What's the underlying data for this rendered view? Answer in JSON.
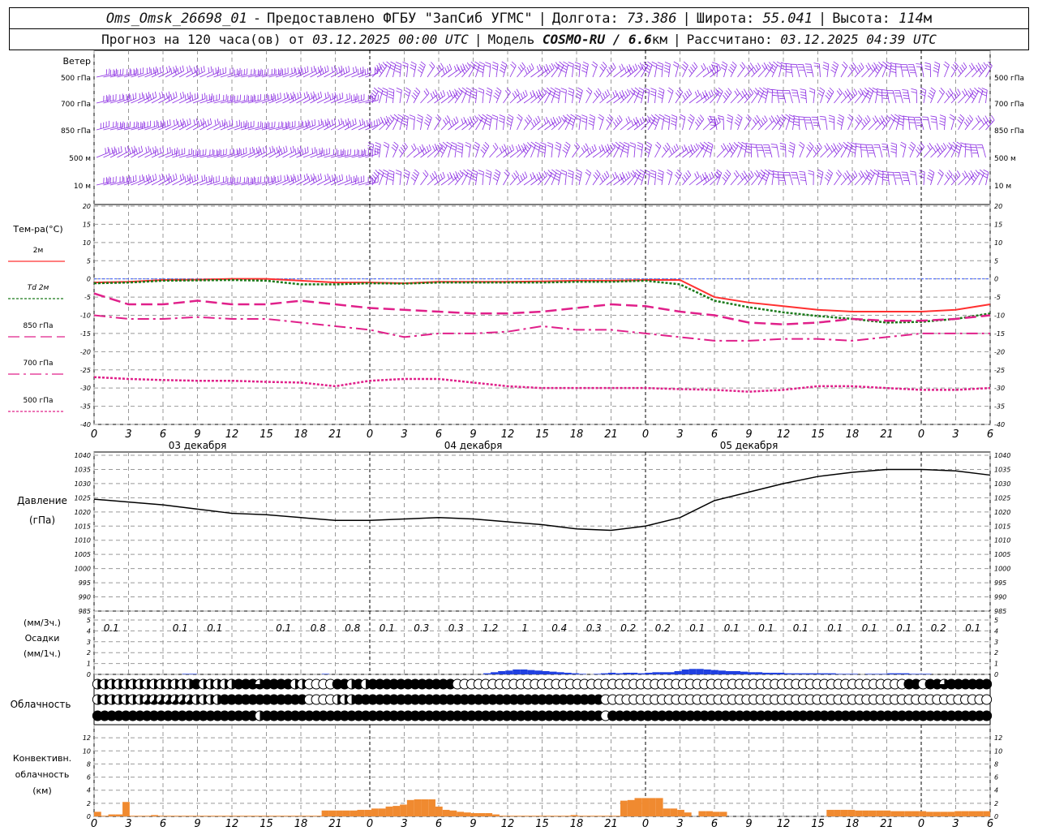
{
  "header": {
    "station": "Oms_Omsk_26698_01",
    "provided_label": "Предоставлено ФГБУ \"ЗапСиб УГМС\"",
    "lon_label": "Долгота:",
    "lon": "73.386",
    "lat_label": "Широта:",
    "lat": "55.041",
    "alt_label": "Высота:",
    "alt": "114",
    "alt_unit": "м",
    "forecast_prefix": "Прогноз на 120 часа(ов) от",
    "forecast_date": "03.12.2025 00:00 UTC",
    "model_label": "Модель",
    "model": "COSMO-RU / 6.6",
    "model_unit": "км",
    "calc_label": "Рассчитано:",
    "calc_date": "03.12.2025 04:39 UTC"
  },
  "panels": {
    "wind": {
      "title": "Ветер",
      "levels": [
        "500 гПа",
        "700 гПа",
        "850 гПа",
        "500 м",
        "10 м"
      ]
    },
    "temp": {
      "title": "Тем-ра(°С)",
      "legend": [
        {
          "label": "2м",
          "color": "#ff3030"
        },
        {
          "label": "Td 2м",
          "color": "#1a7a1a"
        },
        {
          "label": "850 гПа",
          "color": "#e0208a"
        },
        {
          "label": "700 гПа",
          "color": "#e0208a"
        },
        {
          "label": "500 гПа",
          "color": "#e0208a"
        }
      ]
    },
    "pressure": {
      "title": "Давление",
      "unit": "(гПа)"
    },
    "precip": {
      "unit1": "(мм/3ч.)",
      "title": "Осадки",
      "unit2": "(мм/1ч.)"
    },
    "cloud": {
      "title": "Облачность"
    },
    "conv": {
      "title1": "Конвективн.",
      "title2": "облачность",
      "unit": "(км)"
    }
  },
  "x_ticks": [
    "0",
    "3",
    "6",
    "9",
    "12",
    "15",
    "18",
    "21",
    "0",
    "3",
    "6",
    "9",
    "12",
    "15",
    "18",
    "21",
    "0",
    "3",
    "6",
    "9",
    "12",
    "15",
    "18",
    "21",
    "0",
    "3",
    "6"
  ],
  "days": [
    "03 декабря",
    "04 декабря",
    "05 декабря"
  ],
  "chart_data": [
    {
      "type": "line",
      "name": "temperature",
      "ylim": [
        -40,
        20
      ],
      "y_ticks": [
        20,
        15,
        10,
        5,
        0,
        -5,
        -10,
        -15,
        -20,
        -25,
        -30,
        -35,
        -40
      ],
      "x_hours": [
        0,
        3,
        6,
        9,
        12,
        15,
        18,
        21,
        24,
        27,
        30,
        33,
        36,
        39,
        42,
        45,
        48,
        51,
        54,
        57,
        60,
        63,
        66,
        69,
        72,
        75,
        78
      ],
      "series": [
        {
          "name": "2м",
          "color": "#ff3030",
          "values": [
            -1,
            -0.8,
            -0.3,
            -0.2,
            0,
            0,
            -0.5,
            -1,
            -1,
            -1.2,
            -0.8,
            -0.8,
            -0.8,
            -0.7,
            -0.5,
            -0.5,
            -0.3,
            -0.3,
            -5,
            -6.5,
            -7.5,
            -8.5,
            -9,
            -9,
            -9,
            -8.5,
            -7
          ]
        },
        {
          "name": "Td 2м",
          "color": "#1a7a1a",
          "values": [
            -1.2,
            -1,
            -0.5,
            -0.4,
            -0.3,
            -0.5,
            -1.5,
            -1.5,
            -1.2,
            -1.3,
            -1,
            -1,
            -1,
            -1,
            -0.8,
            -0.8,
            -0.5,
            -1.5,
            -6,
            -7.8,
            -9.2,
            -10.2,
            -11,
            -12,
            -11.8,
            -11,
            -9.5
          ]
        },
        {
          "name": "850 гПа",
          "color": "#e0208a",
          "values": [
            -4,
            -7,
            -7,
            -6,
            -7,
            -7,
            -6,
            -7,
            -8,
            -8.5,
            -9,
            -9.5,
            -9.5,
            -9,
            -8,
            -7,
            -7.5,
            -9,
            -10,
            -12,
            -12.5,
            -12,
            -11,
            -11.5,
            -11.5,
            -11,
            -10
          ]
        },
        {
          "name": "700 гПа",
          "color": "#e0208a",
          "values": [
            -10,
            -11,
            -11,
            -10.5,
            -11,
            -11,
            -12,
            -13,
            -14,
            -16,
            -15,
            -15,
            -14.5,
            -13,
            -14,
            -14,
            -15,
            -16,
            -17,
            -17,
            -16.5,
            -16.5,
            -17,
            -16,
            -15,
            -15,
            -15
          ]
        },
        {
          "name": "500 гПа",
          "color": "#e0208a",
          "values": [
            -27,
            -27.5,
            -27.8,
            -28,
            -28,
            -28.3,
            -28.5,
            -29.5,
            -28,
            -27.5,
            -27.5,
            -28.5,
            -29.5,
            -30,
            -30,
            -30,
            -30,
            -30.3,
            -30.5,
            -31,
            -30.5,
            -29.5,
            -29.5,
            -30,
            -30.5,
            -30.5,
            -30
          ]
        }
      ]
    },
    {
      "type": "line",
      "name": "pressure",
      "ylim": [
        985,
        1040
      ],
      "y_ticks": [
        1040,
        1035,
        1030,
        1025,
        1020,
        1015,
        1010,
        1005,
        1000,
        995,
        990,
        985
      ],
      "x_hours": [
        0,
        3,
        6,
        9,
        12,
        15,
        18,
        21,
        24,
        27,
        30,
        33,
        36,
        39,
        42,
        45,
        48,
        51,
        54,
        57,
        60,
        63,
        66,
        69,
        72,
        75,
        78
      ],
      "series": [
        {
          "name": "Давление",
          "color": "#000000",
          "values": [
            1024.5,
            1023.5,
            1022.5,
            1021,
            1019.5,
            1019,
            1018,
            1017,
            1017,
            1017.5,
            1018,
            1017.5,
            1016.5,
            1015.5,
            1014,
            1013.5,
            1015,
            1018,
            1024,
            1027,
            1030,
            1032.5,
            1034,
            1035,
            1035,
            1034.5,
            1033
          ]
        }
      ]
    },
    {
      "type": "bar",
      "name": "precipitation",
      "ylim": [
        0,
        5
      ],
      "y_ticks": [
        5,
        4,
        3,
        2,
        1,
        0
      ],
      "labels_3h": [
        "0.1",
        "0.1",
        "0.1",
        "0.1",
        "0.8",
        "0.8",
        "0.1",
        "0.3",
        "0.3",
        "1.2",
        "1",
        "0.4",
        "0.3",
        "0.2",
        "0.2",
        "0.1",
        "0.1",
        "0.1",
        "0.1",
        "0.1",
        "0.1",
        "0.1",
        "0.2",
        "0.1"
      ],
      "label_hours": [
        1.5,
        7.5,
        10.5,
        16.5,
        19.5,
        22.5,
        25.5,
        28.5,
        31.5,
        34.5,
        37.5,
        40.5,
        43.5,
        46.5,
        49.5,
        52.5,
        55.5,
        58.5,
        61.5,
        64.5,
        67.5,
        70.5,
        73.5,
        76.5
      ],
      "values_1h": [
        0,
        0,
        0,
        0,
        0,
        0,
        0,
        0,
        0,
        0,
        0,
        0,
        0.05,
        0.05,
        0,
        0,
        0,
        0,
        0,
        0,
        0,
        0,
        0,
        0,
        0,
        0,
        0,
        0,
        0,
        0,
        0,
        0.05,
        0,
        0,
        0,
        0,
        0,
        0,
        0,
        0,
        0,
        0,
        0,
        0,
        0,
        0,
        0,
        0,
        0,
        0,
        0,
        0,
        0,
        0.1,
        0.2,
        0.3,
        0.35,
        0.45,
        0.45,
        0.4,
        0.35,
        0.3,
        0.25,
        0.2,
        0.15,
        0.1,
        0.05,
        0,
        0.05,
        0.1,
        0.15,
        0.1,
        0.15,
        0.15,
        0.1,
        0.15,
        0.2,
        0.2,
        0.2,
        0.3,
        0.45,
        0.5,
        0.5,
        0.45,
        0.4,
        0.35,
        0.3,
        0.3,
        0.25,
        0.2,
        0.2,
        0.15,
        0.15,
        0.15,
        0.1,
        0.1,
        0.1,
        0.1,
        0.1,
        0.1,
        0.1,
        0.05,
        0.05,
        0.05,
        0,
        0.05,
        0.05,
        0.05,
        0.1,
        0.1,
        0.1,
        0.05,
        0.05,
        0.05,
        0,
        0,
        0,
        0,
        0,
        0,
        0,
        0
      ]
    },
    {
      "type": "bar",
      "name": "convective_cloud",
      "ylim": [
        0,
        14
      ],
      "y_ticks": [
        12,
        10,
        8,
        6,
        4,
        2,
        0
      ],
      "values_km": [
        0.7,
        0.1,
        0.3,
        0.3,
        2.2,
        0.1,
        0.1,
        0.1,
        0.2,
        0.1,
        0.1,
        0.1,
        0.1,
        0.1,
        0.1,
        0.1,
        0.1,
        0.1,
        0.1,
        0.1,
        0.1,
        0.1,
        0.1,
        0.1,
        0.1,
        0.1,
        0.1,
        0.1,
        0.1,
        0.1,
        0.1,
        0.1,
        0.9,
        0.9,
        0.9,
        0.9,
        0.9,
        1,
        1,
        1.2,
        1.2,
        1.5,
        1.6,
        1.8,
        2.5,
        2.6,
        2.6,
        2.6,
        1.5,
        1,
        0.9,
        0.7,
        0.6,
        0.5,
        0.5,
        0.5,
        0.3,
        0.1,
        0.1,
        0.1,
        0.1,
        0.1,
        0.1,
        0.1,
        0.1,
        0.1,
        0.1,
        0.2,
        0.1,
        0.1,
        0.1,
        0.1,
        0.1,
        0.1,
        2.4,
        2.5,
        2.8,
        2.8,
        2.8,
        2.8,
        1.2,
        1.2,
        1,
        0.6,
        0,
        0.8,
        0.8,
        0.7,
        0.7,
        0,
        0,
        0,
        0,
        0,
        0,
        0,
        0,
        0,
        0,
        0,
        0,
        0,
        0,
        1,
        1,
        1,
        1,
        0.9,
        0.9,
        0.9,
        0.9,
        0.9,
        0.8,
        0.8,
        0.8,
        0.8,
        0.8,
        0.7,
        0.7,
        0.7,
        0.7,
        0.8,
        0.8,
        0.8,
        0.8,
        0.8
      ]
    }
  ],
  "cloud_rows": {
    "upper": "4444444444444484444488868888440000884848888888888880000000000000000000000000000000000000000000000000000000000000000880886888888",
    "middle": "4444444555555544448888888888880000444888888888888888888888888888888888880000000000000000000000000000000000000000000000000000000000",
    "lower": "8888888888888888888888848888888888888888888888888888888888888888888888880888888888888888888888888888888888888888888888888888888888"
  }
}
